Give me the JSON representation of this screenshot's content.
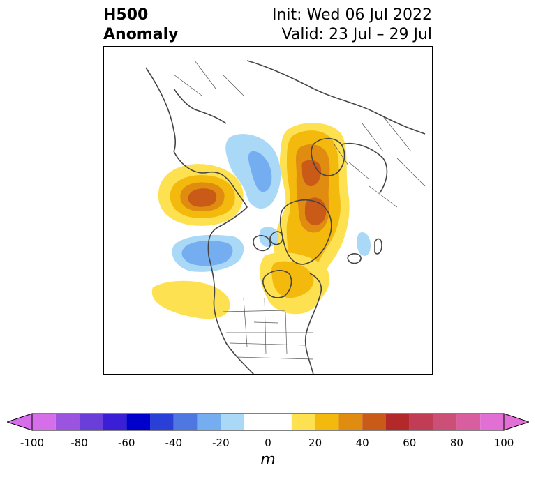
{
  "header": {
    "title_line1": "H500",
    "title_line2": "Anomaly",
    "init_text": "Init: Wed 06 Jul 2022",
    "valid_text": "Valid: 23 Jul – 29 Jul"
  },
  "map": {
    "projection": "polar-stereographic",
    "region": "North America / Arctic",
    "anomaly_centers": [
      {
        "name": "positive-anomaly-alaska",
        "sign": "positive",
        "approx_peak_m": 50
      },
      {
        "name": "positive-anomaly-greenland",
        "sign": "positive",
        "approx_peak_m": 50
      },
      {
        "name": "positive-anomaly-north-europe",
        "sign": "positive",
        "approx_peak_m": 50
      },
      {
        "name": "positive-anomaly-eastern-canada",
        "sign": "positive",
        "approx_peak_m": 30
      },
      {
        "name": "positive-anomaly-north-pacific",
        "sign": "positive",
        "approx_peak_m": 10
      },
      {
        "name": "negative-anomaly-siberia",
        "sign": "negative",
        "approx_peak_m": -30
      },
      {
        "name": "negative-anomaly-gulf-of-alaska",
        "sign": "negative",
        "approx_peak_m": -30
      },
      {
        "name": "negative-anomaly-canadian-arctic",
        "sign": "negative",
        "approx_peak_m": -20
      },
      {
        "name": "negative-anomaly-north-atlantic",
        "sign": "negative",
        "approx_peak_m": -20
      }
    ]
  },
  "colorbar": {
    "unit": "m",
    "min": -100,
    "max": 100,
    "extend": "both",
    "tick_labels": [
      "-100",
      "-80",
      "-60",
      "-40",
      "-20",
      "0",
      "20",
      "40",
      "60",
      "80",
      "100"
    ],
    "bins": [
      {
        "range": "-100 to -90",
        "color": "#d56ee8"
      },
      {
        "range": "-90 to -80",
        "color": "#9a54e0"
      },
      {
        "range": "-80 to -70",
        "color": "#6a3ed9"
      },
      {
        "range": "-70 to -60",
        "color": "#3b1fd6"
      },
      {
        "range": "-60 to -50",
        "color": "#0000cd"
      },
      {
        "range": "-50 to -40",
        "color": "#2a3ed8"
      },
      {
        "range": "-40 to -30",
        "color": "#4e77e2"
      },
      {
        "range": "-30 to -20",
        "color": "#75aef0"
      },
      {
        "range": "-20 to -10",
        "color": "#aad8f7"
      },
      {
        "range": "-10 to 10",
        "color": "#ffffff"
      },
      {
        "range": "10 to 20",
        "color": "#fde150"
      },
      {
        "range": "20 to 30",
        "color": "#f3b90d"
      },
      {
        "range": "30 to 40",
        "color": "#df8c10"
      },
      {
        "range": "40 to 50",
        "color": "#c95a18"
      },
      {
        "range": "50 to 60",
        "color": "#b32828"
      },
      {
        "range": "60 to 70",
        "color": "#c13c55"
      },
      {
        "range": "70 to 80",
        "color": "#cc4f78"
      },
      {
        "range": "80 to 90",
        "color": "#d95ea0"
      },
      {
        "range": "90 to 100",
        "color": "#e26fd4"
      }
    ],
    "extend_low_color": "#d56ee8",
    "extend_high_color": "#e26fd4"
  }
}
